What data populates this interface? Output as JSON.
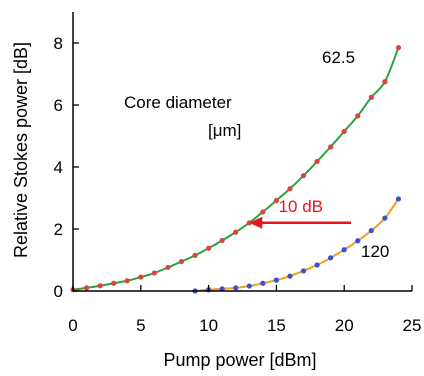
{
  "chart_data": {
    "type": "scatter",
    "xlabel": "Pump power [dBm]",
    "ylabel": "Relative Stokes power [dB]",
    "xlim": [
      0,
      25
    ],
    "ylim": [
      0,
      9
    ],
    "xticks": [
      0,
      5,
      10,
      15,
      20,
      25
    ],
    "yticks": [
      0,
      2,
      4,
      6,
      8
    ],
    "grid": false,
    "legend_title_line1": "Core diameter",
    "legend_title_line2": "[μm]",
    "series": [
      {
        "name": "62.5",
        "marker_color": "#e0413a",
        "fit_color": "#2aa340",
        "x": [
          0,
          1,
          2,
          3,
          4,
          5,
          6,
          7,
          8,
          9,
          10,
          11,
          12,
          13,
          14,
          15,
          16,
          17,
          18,
          19,
          20,
          21,
          22,
          23,
          24
        ],
        "y": [
          0.04,
          0.1,
          0.17,
          0.25,
          0.33,
          0.45,
          0.58,
          0.76,
          0.95,
          1.15,
          1.38,
          1.63,
          1.9,
          2.2,
          2.55,
          2.92,
          3.3,
          3.72,
          4.18,
          4.65,
          5.15,
          5.65,
          6.25,
          6.75,
          7.85
        ]
      },
      {
        "name": "120",
        "marker_color": "#3b4fd6",
        "fit_color": "#f0a020",
        "x": [
          9,
          10,
          11,
          12,
          13,
          14,
          15,
          16,
          17,
          18,
          19,
          20,
          21,
          22,
          23,
          24
        ],
        "y": [
          0.0,
          0.04,
          0.07,
          0.1,
          0.16,
          0.25,
          0.35,
          0.48,
          0.65,
          0.84,
          1.07,
          1.33,
          1.62,
          1.95,
          2.35,
          2.97
        ]
      }
    ],
    "annotation": {
      "text": "10 dB",
      "color": "#e8141e",
      "arrow_from_x": 20.5,
      "arrow_to_x": 13.0,
      "arrow_y": 2.2,
      "text_x": 16.8,
      "text_y": 2.55
    }
  }
}
